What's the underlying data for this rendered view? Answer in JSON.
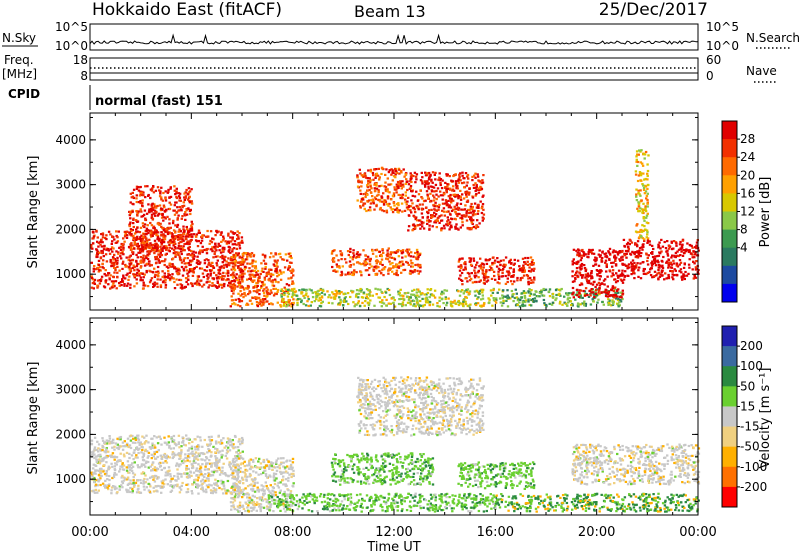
{
  "header": {
    "station": "Hokkaido East (fitACF)",
    "beam": "Beam 13",
    "date": "25/Dec/2017"
  },
  "top_panels": {
    "nsky_label": "N.Sky",
    "nsky_ticks": [
      "10^5",
      "10^0"
    ],
    "nsearch_label": "N.Search",
    "nsearch_ticks": [
      "10^5",
      "10^0"
    ],
    "freq_label_1": "Freq.",
    "freq_label_2": "[MHz]",
    "freq_ticks": [
      "18",
      "8"
    ],
    "nave_label": "Nave",
    "nave_ticks": [
      "60",
      "0"
    ],
    "cpid_label": "CPID",
    "cpid_value": "normal (fast) 151"
  },
  "chart_data": [
    {
      "type": "heatmap",
      "name": "power",
      "ylabel": "Slant Range [km]",
      "yticks": [
        1000,
        2000,
        3000,
        4000
      ],
      "ylim": [
        200,
        4600
      ],
      "xlim": [
        0,
        24
      ],
      "colorbar": {
        "label": "Power [dB]",
        "ticks": [
          "28",
          "24",
          "20",
          "16",
          "12",
          "8",
          "4"
        ],
        "colors": [
          "#e00000",
          "#f23000",
          "#ff6a00",
          "#ffa000",
          "#d8c800",
          "#8ac848",
          "#3c9a50",
          "#2a7a60",
          "#1c4aa0",
          "#0000ee"
        ]
      },
      "blobs": [
        {
          "x0": 0.0,
          "x1": 6.0,
          "y0": 700,
          "y1": 2000,
          "level": 0.85
        },
        {
          "x0": 1.5,
          "x1": 4.0,
          "y0": 1500,
          "y1": 3000,
          "level": 0.8
        },
        {
          "x0": 5.5,
          "x1": 8.0,
          "y0": 300,
          "y1": 1500,
          "level": 0.75
        },
        {
          "x0": 7.5,
          "x1": 16.0,
          "y0": 300,
          "y1": 700,
          "level": 0.35
        },
        {
          "x0": 9.5,
          "x1": 13.0,
          "y0": 1000,
          "y1": 1600,
          "level": 0.7
        },
        {
          "x0": 10.5,
          "x1": 12.5,
          "y0": 2400,
          "y1": 3400,
          "level": 0.7
        },
        {
          "x0": 12.5,
          "x1": 15.5,
          "y0": 2000,
          "y1": 3300,
          "level": 0.85
        },
        {
          "x0": 14.5,
          "x1": 17.5,
          "y0": 800,
          "y1": 1400,
          "level": 0.8
        },
        {
          "x0": 16.0,
          "x1": 21.0,
          "y0": 300,
          "y1": 700,
          "level": 0.3
        },
        {
          "x0": 19.0,
          "x1": 21.0,
          "y0": 500,
          "y1": 1600,
          "level": 0.9
        },
        {
          "x0": 21.0,
          "x1": 24.0,
          "y0": 900,
          "y1": 1800,
          "level": 0.9
        },
        {
          "x0": 21.5,
          "x1": 22.0,
          "y0": 1800,
          "y1": 3800,
          "level": 0.45
        }
      ]
    },
    {
      "type": "heatmap",
      "name": "velocity",
      "ylabel": "Slant Range [km]",
      "yticks": [
        1000,
        2000,
        3000,
        4000
      ],
      "ylim": [
        200,
        4600
      ],
      "xlim": [
        0,
        24
      ],
      "xticks": [
        "00:00",
        "04:00",
        "08:00",
        "12:00",
        "16:00",
        "20:00",
        "00:00"
      ],
      "xlabel": "Time UT",
      "colorbar": {
        "label": "Velocity [m s⁻¹]",
        "ticks": [
          "200",
          "100",
          "50",
          "15",
          "-15",
          "-50",
          "-100",
          "-200"
        ],
        "colors": [
          "#2020b0",
          "#3a6aa0",
          "#2a8a40",
          "#6ad030",
          "#c8c8c8",
          "#f0d080",
          "#ffb000",
          "#ff7000",
          "#ff0000"
        ]
      },
      "blobs": [
        {
          "x0": 0.0,
          "x1": 6.0,
          "y0": 700,
          "y1": 2000,
          "level": 0.45
        },
        {
          "x0": 5.5,
          "x1": 8.0,
          "y0": 300,
          "y1": 1500,
          "level": 0.45
        },
        {
          "x0": 7.0,
          "x1": 16.0,
          "y0": 300,
          "y1": 700,
          "level": 0.3
        },
        {
          "x0": 9.5,
          "x1": 13.5,
          "y0": 900,
          "y1": 1600,
          "level": 0.3
        },
        {
          "x0": 10.5,
          "x1": 15.5,
          "y0": 2000,
          "y1": 3300,
          "level": 0.45
        },
        {
          "x0": 14.5,
          "x1": 17.5,
          "y0": 800,
          "y1": 1400,
          "level": 0.3
        },
        {
          "x0": 16.0,
          "x1": 24.0,
          "y0": 300,
          "y1": 700,
          "level": 0.2
        },
        {
          "x0": 19.0,
          "x1": 24.0,
          "y0": 900,
          "y1": 1800,
          "level": 0.45
        }
      ]
    }
  ]
}
